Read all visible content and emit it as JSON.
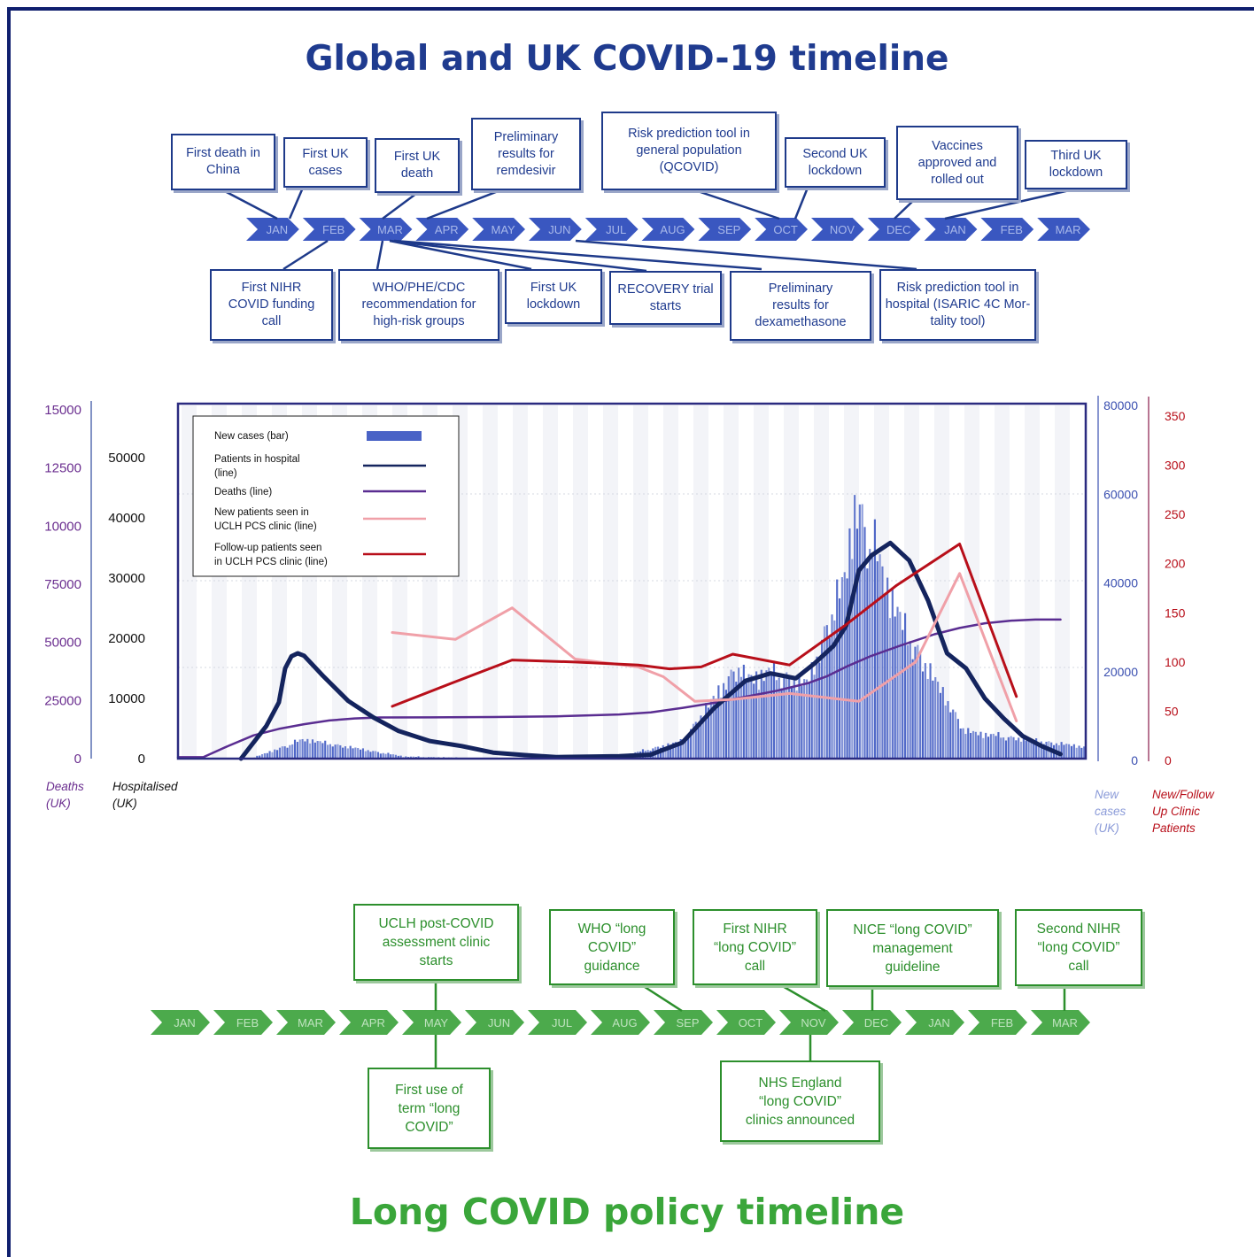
{
  "global_timeline": {
    "title": "Global and UK COVID-19 timeline",
    "months": [
      "JAN",
      "FEB",
      "MAR",
      "APR",
      "MAY",
      "JUN",
      "JUL",
      "AUG",
      "SEP",
      "OCT",
      "NOV",
      "DEC",
      "JAN",
      "FEB",
      "MAR"
    ],
    "events_above": [
      {
        "text": "First death in\nChina",
        "month_index": 0
      },
      {
        "text": "First UK\ncases",
        "month_index": 0
      },
      {
        "text": "First UK\ndeath",
        "month_index": 2
      },
      {
        "text": "Preliminary\nresults for\nremdesivir",
        "month_index": 3
      },
      {
        "text": "Risk prediction tool in\ngeneral population\n(QCOVID)",
        "month_index": 9
      },
      {
        "text": "Second UK\nlockdown",
        "month_index": 9
      },
      {
        "text": "Vaccines\napproved and\nrolled out",
        "month_index": 11
      },
      {
        "text": "Third UK\nlockdown",
        "month_index": 12
      }
    ],
    "events_below": [
      {
        "text": "First NIHR\nCOVID funding\ncall",
        "month_index": 1
      },
      {
        "text": "WHO/PHE/CDC\nrecommendation for\nhigh-risk groups",
        "month_index": 2
      },
      {
        "text": "First UK\nlockdown",
        "month_index": 2
      },
      {
        "text": "RECOVERY trial\nstarts",
        "month_index": 2
      },
      {
        "text": "Preliminary\nresults for\ndexamethasone",
        "month_index": 5
      },
      {
        "text": "Risk prediction tool in\nhospital (ISARIC 4C Mor-\ntality tool)",
        "month_index": 8
      }
    ]
  },
  "chart_data": {
    "type": "line",
    "legend": [
      {
        "name": "New cases (bar)",
        "color": "#4a63c6"
      },
      {
        "name": "Patients in hospital\n(line)",
        "color": "#14245e"
      },
      {
        "name": "Deaths (line)",
        "color": "#5a2d91"
      },
      {
        "name": "New patients seen in\nUCLH PCS clinic (line)",
        "color": "#f0a0a8"
      },
      {
        "name": "Follow-up patients seen\nin UCLH PCS clinic (line)",
        "color": "#b80f1a"
      }
    ],
    "axes": {
      "deaths": {
        "ticks": [
          "0",
          "25000",
          "50000",
          "75000",
          "10000",
          "12500",
          "15000"
        ],
        "label": "Deaths\n(UK)",
        "color": "#6a2d8f",
        "range": [
          0,
          150000
        ]
      },
      "hospitalised": {
        "ticks": [
          "0",
          "10000",
          "20000",
          "30000",
          "40000",
          "50000"
        ],
        "label": "Hospitalised\n(UK)",
        "color": "#111111",
        "range": [
          0,
          60000
        ]
      },
      "new_cases": {
        "ticks": [
          "0",
          "20000",
          "40000",
          "60000",
          "80000"
        ],
        "label": "New\ncases\n(UK)",
        "color": "#3a4fb0",
        "range": [
          0,
          80000
        ]
      },
      "clinic": {
        "ticks": [
          "0",
          "50",
          "100",
          "150",
          "200",
          "250",
          "300",
          "350"
        ],
        "label": "New/Follow\nUp Clinic\nPatients",
        "color": "#b80f1a",
        "range": [
          0,
          350
        ]
      }
    },
    "x_range": [
      0,
      14.4
    ],
    "series": [
      {
        "name": "Deaths (line)",
        "axis": "deaths",
        "color": "#5a2d91",
        "width": 2.5,
        "x": [
          0.0,
          0.4,
          0.8,
          1.2,
          1.6,
          2.0,
          2.4,
          2.8,
          3.2,
          4.0,
          5.0,
          6.0,
          7.0,
          7.5,
          8.0,
          8.5,
          9.0,
          9.5,
          10.0,
          10.3,
          10.6,
          11.0,
          11.5,
          12.0,
          12.4,
          12.8,
          13.2,
          13.6,
          14.0
        ],
        "y": [
          600,
          600,
          5500,
          10000,
          12800,
          14800,
          16400,
          17300,
          17700,
          17750,
          17900,
          18200,
          19000,
          19900,
          21800,
          24000,
          26600,
          29200,
          32500,
          35500,
          39500,
          44200,
          49000,
          53500,
          56200,
          58200,
          59300,
          59800,
          59800
        ]
      },
      {
        "name": "Patients in hospital\n(line)",
        "axis": "hospitalised",
        "color": "#14245e",
        "width": 5,
        "x": [
          1.0,
          1.4,
          1.6,
          1.7,
          1.8,
          1.9,
          2.0,
          2.3,
          2.7,
          3.1,
          3.5,
          4.0,
          4.5,
          5.0,
          5.5,
          6.0,
          6.5,
          7.0,
          7.5,
          8.0,
          8.5,
          9.0,
          9.4,
          9.8,
          10.1,
          10.4,
          10.6,
          10.8,
          11.0,
          11.3,
          11.6,
          11.9,
          12.2,
          12.5,
          12.8,
          13.1,
          13.4,
          13.7,
          14.0
        ],
        "y": [
          0,
          6500,
          11200,
          18000,
          20400,
          21000,
          20500,
          16500,
          11500,
          8200,
          5500,
          3500,
          2500,
          1200,
          700,
          300,
          400,
          500,
          800,
          3200,
          10000,
          15500,
          17000,
          16000,
          19000,
          22500,
          26500,
          37500,
          40500,
          43000,
          39500,
          31500,
          21000,
          18000,
          12000,
          8000,
          4500,
          2500,
          900
        ]
      },
      {
        "name": "New patients seen in\nUCLH PCS clinic (line)",
        "axis": "clinic",
        "color": "#f0a0a8",
        "width": 3,
        "x": [
          3.4,
          4.4,
          5.3,
          6.3,
          7.3,
          7.7,
          8.2,
          8.8,
          9.7,
          10.8,
          11.7,
          12.4,
          13.3
        ],
        "y": [
          130,
          123,
          155,
          103,
          95,
          85,
          60,
          62,
          68,
          60,
          100,
          190,
          40
        ]
      },
      {
        "name": "Follow-up patients seen\nin UCLH PCS clinic (line)",
        "axis": "clinic",
        "color": "#b80f1a",
        "width": 3,
        "x": [
          3.4,
          4.4,
          5.3,
          6.3,
          7.3,
          7.8,
          8.3,
          8.8,
          9.7,
          10.6,
          11.4,
          12.4,
          13.3
        ],
        "y": [
          55,
          80,
          102,
          100,
          97,
          93,
          95,
          108,
          97,
          138,
          178,
          220,
          65
        ]
      },
      {
        "name": "New cases (bar)",
        "axis": "new_cases",
        "color": "#4a63c6",
        "segments": [
          {
            "x0": 1.2,
            "x1": 3.6,
            "peak_x": 2.0,
            "y0": 700,
            "peak": 5500,
            "y1": 1000
          },
          {
            "x0": 3.6,
            "x1": 7.0,
            "peak_x": 5.0,
            "y0": 1000,
            "peak": 500,
            "y1": 1000
          },
          {
            "x0": 7.0,
            "x1": 8.0,
            "peak_x": 8.0,
            "y0": 1000,
            "peak": 5000,
            "y1": 5000
          },
          {
            "x0": 8.0,
            "x1": 9.0,
            "peak_x": 8.9,
            "y0": 5000,
            "peak": 25000,
            "y1": 21000
          },
          {
            "x0": 9.0,
            "x1": 10.0,
            "peak_x": 9.4,
            "y0": 21000,
            "peak": 23000,
            "y1": 20000
          },
          {
            "x0": 10.0,
            "x1": 10.6,
            "peak_x": 10.3,
            "y0": 20000,
            "peak": 35000,
            "y1": 48000
          },
          {
            "x0": 10.6,
            "x1": 11.5,
            "peak_x": 10.75,
            "y0": 48000,
            "peak": 68000,
            "y1": 35000
          },
          {
            "x0": 11.5,
            "x1": 12.5,
            "peak_x": 11.5,
            "y0": 35000,
            "peak": 35000,
            "y1": 7500
          },
          {
            "x0": 12.5,
            "x1": 14.4,
            "peak_x": 12.5,
            "y0": 7500,
            "peak": 7500,
            "y1": 3500
          }
        ]
      }
    ]
  },
  "policy_timeline": {
    "title": "Long COVID policy timeline",
    "months": [
      "JAN",
      "FEB",
      "MAR",
      "APR",
      "MAY",
      "JUN",
      "JUL",
      "AUG",
      "SEP",
      "OCT",
      "NOV",
      "DEC",
      "JAN",
      "FEB",
      "MAR"
    ],
    "events_above": [
      {
        "text": "UCLH post-COVID\nassessment clinic\nstarts",
        "month_index": 4
      },
      {
        "text": "WHO “long\nCOVID”\nguidance",
        "month_index": 8
      },
      {
        "text": "First NIHR\n“long COVID”\ncall",
        "month_index": 10
      },
      {
        "text": "NICE “long COVID”\nmanagement\nguideline",
        "month_index": 11
      },
      {
        "text": "Second NIHR\n“long COVID”\ncall",
        "month_index": 14
      }
    ],
    "events_below": [
      {
        "text": "First use of\nterm “long\nCOVID”",
        "month_index": 4
      },
      {
        "text": "NHS England\n“long COVID”\nclinics announced",
        "month_index": 10
      }
    ]
  }
}
